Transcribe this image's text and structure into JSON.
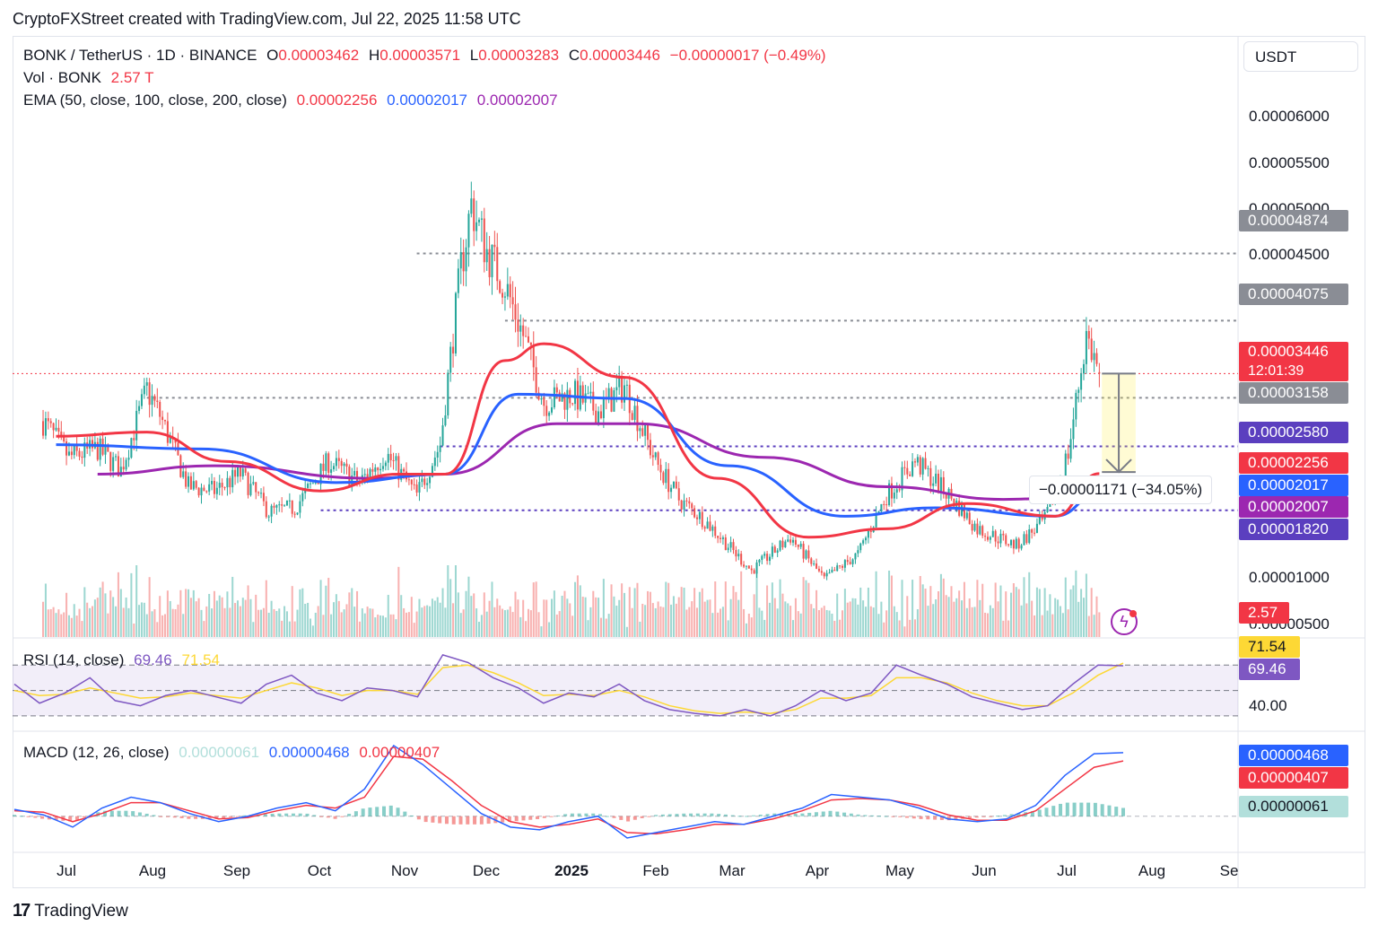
{
  "caption": "CryptoFXStreet created with TradingView.com, Jul 22, 2025 11:58 UTC",
  "branding": "TradingView",
  "quote_currency_button": "USDT",
  "legend": {
    "symbol": "BONK / TetherUS · 1D · BINANCE",
    "open_label": "O",
    "open": "0.00003462",
    "high_label": "H",
    "high": "0.00003571",
    "low_label": "L",
    "low": "0.00003283",
    "close_label": "C",
    "close": "0.00003446",
    "change": "−0.00000017 (−0.49%)",
    "vol_label": "Vol · BONK",
    "vol": "2.57 T",
    "ema_label": "EMA (50, close, 100, close, 200, close)",
    "ema50": "0.00002256",
    "ema100": "0.00002017",
    "ema200": "0.00002007",
    "rsi_label": "RSI (14, close)",
    "rsi": "69.46",
    "rsi_ma": "71.54",
    "macd_label": "MACD (12, 26, close)",
    "macd_hist": "0.00000061",
    "macd_line": "0.00000468",
    "macd_signal": "0.00000407"
  },
  "colors": {
    "up": "#26a69a",
    "down": "#ef5350",
    "ema50": "#f23645",
    "ema100": "#2962ff",
    "ema200": "#9c27b0",
    "rsi": "#7e57c2",
    "rsi_ma": "#fdd835",
    "macd": "#2962ff",
    "signal": "#f23645",
    "level_gray": "#8a8d95",
    "level_purple": "#5b3fbf"
  },
  "measure_label": "−0.00001171 (−34.05%)",
  "chart_data": [
    {
      "type": "candlestick",
      "title": "BONK / TetherUS · 1D · BINANCE",
      "y_scale": "linear",
      "ylim": [
        4.2e-06,
        6.82e-05
      ],
      "y_ticks": [
        "0.00006000",
        "0.00005500",
        "0.00005000",
        "0.00004500",
        "0.00001000",
        "0.00000500"
      ],
      "x_ticks": [
        "Jul",
        "Aug",
        "Sep",
        "Oct",
        "Nov",
        "Dec",
        "2025",
        "Feb",
        "Mar",
        "Apr",
        "May",
        "Jun",
        "Jul",
        "Aug",
        "Se"
      ],
      "x_tick_dates": [
        "2024-07-01",
        "2024-08-01",
        "2024-09-01",
        "2024-10-01",
        "2024-11-01",
        "2024-12-01",
        "2025-01-01",
        "2025-02-01",
        "2025-03-01",
        "2025-04-01",
        "2025-05-01",
        "2025-06-01",
        "2025-07-01",
        "2025-08-01",
        "2025-09-01"
      ],
      "close_path": [
        {
          "date": "2024-06-10",
          "close": 2.88e-05
        },
        {
          "date": "2024-06-20",
          "close": 2.45e-05
        },
        {
          "date": "2024-07-01",
          "close": 2.55e-05
        },
        {
          "date": "2024-07-10",
          "close": 2.3e-05
        },
        {
          "date": "2024-07-20",
          "close": 3.25e-05
        },
        {
          "date": "2024-07-25",
          "close": 2.95e-05
        },
        {
          "date": "2024-08-05",
          "close": 2.1e-05
        },
        {
          "date": "2024-08-15",
          "close": 2.05e-05
        },
        {
          "date": "2024-08-25",
          "close": 2.25e-05
        },
        {
          "date": "2024-09-05",
          "close": 1.8e-05
        },
        {
          "date": "2024-09-15",
          "close": 1.85e-05
        },
        {
          "date": "2024-09-28",
          "close": 2.4e-05
        },
        {
          "date": "2024-10-10",
          "close": 2.15e-05
        },
        {
          "date": "2024-10-20",
          "close": 2.5e-05
        },
        {
          "date": "2024-11-01",
          "close": 2e-05
        },
        {
          "date": "2024-11-10",
          "close": 2.6e-05
        },
        {
          "date": "2024-11-18",
          "close": 4.7e-05
        },
        {
          "date": "2024-11-22",
          "close": 5.45e-05
        },
        {
          "date": "2024-11-28",
          "close": 4.9e-05
        },
        {
          "date": "2024-12-05",
          "close": 4.5e-05
        },
        {
          "date": "2024-12-12",
          "close": 3.9e-05
        },
        {
          "date": "2024-12-20",
          "close": 3.1e-05
        },
        {
          "date": "2024-12-31",
          "close": 3.2e-05
        },
        {
          "date": "2025-01-10",
          "close": 3e-05
        },
        {
          "date": "2025-01-20",
          "close": 3.3e-05
        },
        {
          "date": "2025-02-01",
          "close": 2.4e-05
        },
        {
          "date": "2025-02-10",
          "close": 1.95e-05
        },
        {
          "date": "2025-02-20",
          "close": 1.7e-05
        },
        {
          "date": "2025-03-01",
          "close": 1.4e-05
        },
        {
          "date": "2025-03-10",
          "close": 1.1e-05
        },
        {
          "date": "2025-03-25",
          "close": 1.5e-05
        },
        {
          "date": "2025-04-07",
          "close": 1e-05
        },
        {
          "date": "2025-04-20",
          "close": 1.3e-05
        },
        {
          "date": "2025-05-01",
          "close": 2e-05
        },
        {
          "date": "2025-05-12",
          "close": 2.4e-05
        },
        {
          "date": "2025-05-25",
          "close": 2e-05
        },
        {
          "date": "2025-06-05",
          "close": 1.6e-05
        },
        {
          "date": "2025-06-20",
          "close": 1.4e-05
        },
        {
          "date": "2025-07-01",
          "close": 1.7e-05
        },
        {
          "date": "2025-07-10",
          "close": 2.5e-05
        },
        {
          "date": "2025-07-17",
          "close": 3.9e-05
        },
        {
          "date": "2025-07-22",
          "close": 3.446e-05
        }
      ],
      "ema50": [
        {
          "date": "2024-06-15",
          "value": 2.7e-05
        },
        {
          "date": "2024-07-20",
          "value": 2.75e-05
        },
        {
          "date": "2024-08-20",
          "value": 2.4e-05
        },
        {
          "date": "2024-09-25",
          "value": 2.05e-05
        },
        {
          "date": "2024-10-25",
          "value": 2.25e-05
        },
        {
          "date": "2024-11-12",
          "value": 2.25e-05
        },
        {
          "date": "2024-12-05",
          "value": 3.6e-05
        },
        {
          "date": "2024-12-20",
          "value": 3.8e-05
        },
        {
          "date": "2025-01-20",
          "value": 3.4e-05
        },
        {
          "date": "2025-02-25",
          "value": 2.2e-05
        },
        {
          "date": "2025-04-01",
          "value": 1.5e-05
        },
        {
          "date": "2025-05-01",
          "value": 1.6e-05
        },
        {
          "date": "2025-06-01",
          "value": 1.9e-05
        },
        {
          "date": "2025-07-05",
          "value": 1.75e-05
        },
        {
          "date": "2025-07-22",
          "value": 2.256e-05
        }
      ],
      "ema100": [
        {
          "date": "2024-06-15",
          "value": 2.6e-05
        },
        {
          "date": "2024-08-10",
          "value": 2.55e-05
        },
        {
          "date": "2024-10-01",
          "value": 2.15e-05
        },
        {
          "date": "2024-11-12",
          "value": 2.25e-05
        },
        {
          "date": "2024-12-10",
          "value": 3.2e-05
        },
        {
          "date": "2025-01-20",
          "value": 3.15e-05
        },
        {
          "date": "2025-03-01",
          "value": 2.35e-05
        },
        {
          "date": "2025-04-15",
          "value": 1.75e-05
        },
        {
          "date": "2025-05-20",
          "value": 1.85e-05
        },
        {
          "date": "2025-07-05",
          "value": 1.75e-05
        },
        {
          "date": "2025-07-22",
          "value": 2.017e-05
        }
      ],
      "ema200": [
        {
          "date": "2024-07-01",
          "value": 2.25e-05
        },
        {
          "date": "2024-08-15",
          "value": 2.35e-05
        },
        {
          "date": "2024-10-15",
          "value": 2.2e-05
        },
        {
          "date": "2024-11-12",
          "value": 2.25e-05
        },
        {
          "date": "2024-12-25",
          "value": 2.85e-05
        },
        {
          "date": "2025-01-25",
          "value": 2.85e-05
        },
        {
          "date": "2025-03-15",
          "value": 2.45e-05
        },
        {
          "date": "2025-05-01",
          "value": 2.1e-05
        },
        {
          "date": "2025-06-15",
          "value": 1.95e-05
        },
        {
          "date": "2025-07-22",
          "value": 2.007e-05
        }
      ],
      "price_lines": [
        {
          "value": 4.874e-05,
          "label": "0.00004874",
          "style": "gray-dotted",
          "from": "2024-11-01"
        },
        {
          "value": 4.075e-05,
          "label": "0.00004075",
          "style": "gray-dotted",
          "from": "2024-12-05"
        },
        {
          "value": 3.446e-05,
          "label": "0.00003446",
          "style": "red-dotted",
          "countdown": "12:01:39"
        },
        {
          "value": 3.158e-05,
          "label": "0.00003158",
          "style": "gray-dotted",
          "from": "2024-07-20"
        },
        {
          "value": 2.58e-05,
          "label": "0.00002580",
          "style": "purple-dotted",
          "from": "2024-11-10"
        },
        {
          "value": 1.82e-05,
          "label": "0.00001820",
          "style": "purple-dotted",
          "from": "2024-09-25"
        }
      ],
      "ema_labels": {
        "ema50": "0.00002256",
        "ema100": "0.00002017",
        "ema200": "0.00002007"
      },
      "volume_label": "2.57 T",
      "measure": {
        "from": 3.446e-05,
        "to": 2.275e-05,
        "from_date": "2025-07-23",
        "to_date": "2025-08-05",
        "label": "−0.00001171 (−34.05%)"
      }
    },
    {
      "type": "line",
      "title": "RSI (14, close)",
      "ylim": [
        25,
        85
      ],
      "y_ticks": [
        "40.00"
      ],
      "bands": [
        70,
        50,
        30
      ],
      "series": [
        {
          "name": "RSI",
          "values": [
            55,
            40,
            48,
            60,
            42,
            38,
            46,
            50,
            45,
            40,
            55,
            62,
            48,
            42,
            52,
            50,
            45,
            78,
            72,
            60,
            52,
            40,
            48,
            45,
            55,
            42,
            35,
            32,
            30,
            35,
            30,
            38,
            50,
            42,
            48,
            70,
            62,
            55,
            45,
            40,
            35,
            38,
            55,
            70,
            69.46
          ]
        },
        {
          "name": "RSI MA",
          "values": [
            50,
            46,
            47,
            52,
            48,
            44,
            45,
            48,
            46,
            44,
            50,
            56,
            52,
            46,
            50,
            50,
            47,
            68,
            70,
            64,
            56,
            46,
            47,
            46,
            50,
            45,
            38,
            34,
            32,
            33,
            32,
            35,
            44,
            44,
            46,
            60,
            60,
            56,
            48,
            42,
            38,
            38,
            48,
            62,
            71.54
          ]
        }
      ],
      "current": {
        "rsi": "69.46",
        "ma": "71.54"
      }
    },
    {
      "type": "line",
      "title": "MACD (12, 26, close)",
      "ylim": [
        -2e-06,
        5.4e-06
      ],
      "series": [
        {
          "name": "MACD",
          "values": [
            5e-07,
            1e-07,
            -8e-07,
            6e-07,
            1.4e-06,
            1e-06,
            2e-07,
            -4e-07,
            0.0,
            6e-07,
            1e-06,
            4e-07,
            2e-06,
            5.2e-06,
            3.8e-06,
            2e-06,
            2e-07,
            -8e-07,
            -1e-06,
            -4e-07,
            0.0,
            -1.6e-06,
            -1.2e-06,
            -8e-07,
            -4e-07,
            -6e-07,
            0.0,
            6e-07,
            1.6e-06,
            1.4e-06,
            1.2e-06,
            6e-07,
            -2e-07,
            -4e-07,
            -2e-07,
            8e-07,
            3e-06,
            4.6e-06,
            4.68e-06
          ]
        },
        {
          "name": "Signal",
          "values": [
            4e-07,
            3e-07,
            -4e-07,
            2e-07,
            1e-06,
            1e-06,
            4e-07,
            -2e-07,
            -1e-07,
            4e-07,
            8e-07,
            6e-07,
            1.4e-06,
            4.4e-06,
            4.2e-06,
            2.6e-06,
            8e-07,
            -4e-07,
            -8e-07,
            -6e-07,
            -2e-07,
            -1.2e-06,
            -1.3e-06,
            -1e-06,
            -6e-07,
            -6e-07,
            -2e-07,
            4e-07,
            1.2e-06,
            1.3e-06,
            1.2e-06,
            8e-07,
            1e-07,
            -3e-07,
            -3e-07,
            4e-07,
            2e-06,
            3.6e-06,
            4.07e-06
          ]
        }
      ],
      "current": {
        "histogram": "0.00000061",
        "macd": "0.00000468",
        "signal": "0.00000407"
      }
    }
  ]
}
